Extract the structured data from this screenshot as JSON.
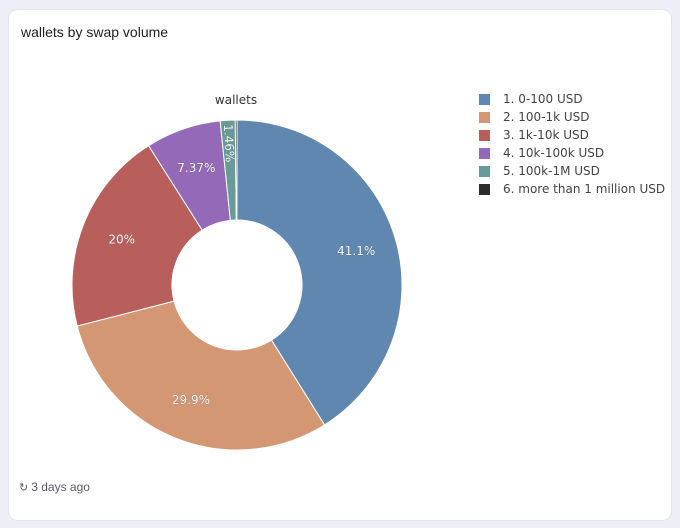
{
  "card": {
    "title": "wallets by swap volume",
    "updated": "3 days ago"
  },
  "chart_data": {
    "type": "pie",
    "donut": true,
    "title": "wallets",
    "legend_position": "right",
    "categories": [
      "1. 0-100 USD",
      "2. 100-1k USD",
      "3. 1k-10k USD",
      "4. 10k-100k USD",
      "5. 100k-1M USD",
      "6. more than 1 million USD"
    ],
    "values": [
      41.1,
      29.9,
      20,
      7.37,
      1.46,
      0.17
    ],
    "labels": [
      "41.1%",
      "29.9%",
      "20%",
      "7.37%",
      "1.46%",
      ""
    ],
    "colors": [
      "#5f87b0",
      "#d39774",
      "#b85e5b",
      "#9469b7",
      "#669b98",
      "#2b2b2b"
    ]
  },
  "icons": {
    "refresh": "refresh-icon"
  }
}
